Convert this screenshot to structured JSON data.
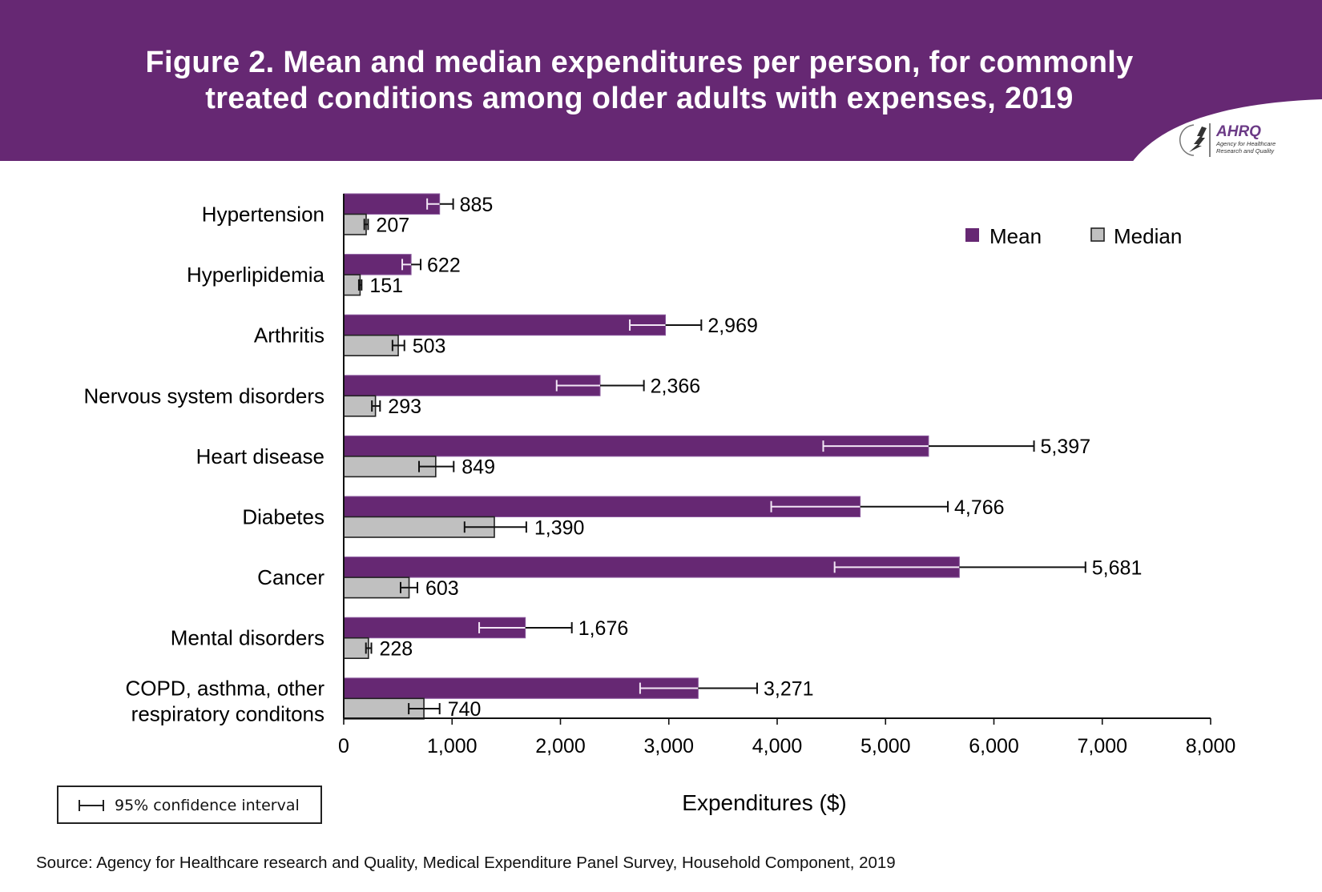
{
  "header": {
    "title_line1": "Figure 2. Mean and median expenditures per person, for commonly",
    "title_line2": "treated conditions among older adults with expenses, 2019",
    "background_color": "#662873",
    "logo": {
      "emblem_icon": "hhs-eagle-icon",
      "name": "AHRQ",
      "subtitle_line1": "Agency for Healthcare",
      "subtitle_line2": "Research and Quality"
    }
  },
  "ci_legend": {
    "icon": "error-bar-icon",
    "label": "95% confidence interval"
  },
  "source": "Source: Agency for Healthcare research and Quality, Medical Expenditure Panel Survey, Household Component, 2019",
  "chart_data": {
    "type": "bar",
    "orientation": "horizontal",
    "title": "Figure 2. Mean and median expenditures per person, for commonly treated conditions among older adults with expenses, 2019",
    "xlabel": "Expenditures ($)",
    "ylabel": "",
    "xlim": [
      0,
      8000
    ],
    "xticks": [
      0,
      1000,
      2000,
      3000,
      4000,
      5000,
      6000,
      7000,
      8000
    ],
    "xtick_labels": [
      "0",
      "1,000",
      "2,000",
      "3,000",
      "4,000",
      "5,000",
      "6,000",
      "7,000",
      "8,000"
    ],
    "grid": false,
    "legend_position": "top-right",
    "categories": [
      "Hypertension",
      "Hyperlipidemia",
      "Arthritis",
      "Nervous system disorders",
      "Heart disease",
      "Diabetes",
      "Cancer",
      "Mental disorders",
      "COPD, asthma, other respiratory conditons"
    ],
    "category_label_lines": [
      [
        "Hypertension"
      ],
      [
        "Hyperlipidemia"
      ],
      [
        "Arthritis"
      ],
      [
        "Nervous system disorders"
      ],
      [
        "Heart disease"
      ],
      [
        "Diabetes"
      ],
      [
        "Cancer"
      ],
      [
        "Mental disorders"
      ],
      [
        "COPD, asthma, other",
        "respiratory conditons"
      ]
    ],
    "series": [
      {
        "name": "Mean",
        "color": "#662873",
        "values": [
          885,
          622,
          2969,
          2366,
          5397,
          4766,
          5681,
          1676,
          3271
        ],
        "value_labels": [
          "885",
          "622",
          "2,969",
          "2,366",
          "5,397",
          "4,766",
          "5,681",
          "1,676",
          "3,271"
        ],
        "ci_low": [
          770,
          540,
          2640,
          1965,
          4425,
          3945,
          4530,
          1250,
          2735
        ],
        "ci_high": [
          1010,
          710,
          3300,
          2770,
          6370,
          5575,
          6845,
          2105,
          3815
        ]
      },
      {
        "name": "Median",
        "color": "#c0c0c0",
        "values": [
          207,
          151,
          503,
          293,
          849,
          1390,
          603,
          228,
          740
        ],
        "value_labels": [
          "207",
          "151",
          "503",
          "293",
          "849",
          "1,390",
          "603",
          "228",
          "740"
        ],
        "ci_low": [
          190,
          140,
          450,
          260,
          695,
          1115,
          525,
          205,
          600
        ],
        "ci_high": [
          225,
          165,
          560,
          335,
          1015,
          1685,
          680,
          255,
          885
        ]
      }
    ]
  }
}
